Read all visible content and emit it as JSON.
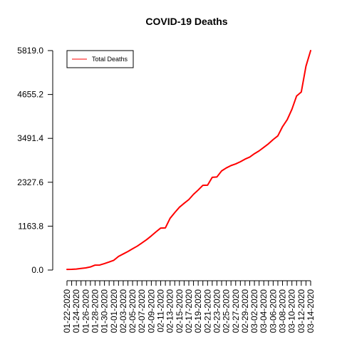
{
  "chart_data": {
    "type": "line",
    "title": "COVID-19 Deaths",
    "xlabel": "",
    "ylabel": "",
    "x": [
      "01-22-2020",
      "01-23-2020",
      "01-24-2020",
      "01-25-2020",
      "01-26-2020",
      "01-27-2020",
      "01-28-2020",
      "01-29-2020",
      "01-30-2020",
      "01-31-2020",
      "02-01-2020",
      "02-02-2020",
      "02-03-2020",
      "02-04-2020",
      "02-05-2020",
      "02-06-2020",
      "02-07-2020",
      "02-08-2020",
      "02-09-2020",
      "02-10-2020",
      "02-11-2020",
      "02-12-2020",
      "02-13-2020",
      "02-14-2020",
      "02-15-2020",
      "02-16-2020",
      "02-17-2020",
      "02-18-2020",
      "02-19-2020",
      "02-20-2020",
      "02-21-2020",
      "02-22-2020",
      "02-23-2020",
      "02-24-2020",
      "02-25-2020",
      "02-26-2020",
      "02-27-2020",
      "02-28-2020",
      "02-29-2020",
      "03-01-2020",
      "03-02-2020",
      "03-03-2020",
      "03-04-2020",
      "03-05-2020",
      "03-06-2020",
      "03-07-2020",
      "03-08-2020",
      "03-09-2020",
      "03-10-2020",
      "03-11-2020",
      "03-12-2020",
      "03-13-2020",
      "03-14-2020"
    ],
    "x_tick_labels": [
      "01-22-2020",
      "01-24-2020",
      "01-26-2020",
      "01-28-2020",
      "01-30-2020",
      "02-01-2020",
      "02-03-2020",
      "02-05-2020",
      "02-07-2020",
      "02-09-2020",
      "02-11-2020",
      "02-13-2020",
      "02-15-2020",
      "02-17-2020",
      "02-19-2020",
      "02-21-2020",
      "02-23-2020",
      "02-25-2020",
      "02-27-2020",
      "02-29-2020",
      "03-02-2020",
      "03-04-2020",
      "03-06-2020",
      "03-08-2020",
      "03-10-2020",
      "03-12-2020",
      "03-14-2020"
    ],
    "series": [
      {
        "name": "Total Deaths",
        "color": "#ff0000",
        "values": [
          17,
          18,
          26,
          42,
          56,
          82,
          131,
          133,
          171,
          213,
          259,
          362,
          426,
          492,
          564,
          634,
          719,
          806,
          906,
          1013,
          1113,
          1118,
          1371,
          1523,
          1666,
          1770,
          1868,
          2007,
          2122,
          2247,
          2251,
          2458,
          2469,
          2629,
          2708,
          2770,
          2814,
          2872,
          2941,
          2996,
          3085,
          3160,
          3254,
          3348,
          3460,
          3558,
          3802,
          3988,
          4262,
          4615,
          4720,
          5404,
          5819
        ]
      }
    ],
    "yticks": [
      "0.0",
      "1163.8",
      "2327.6",
      "3491.4",
      "4655.2",
      "5819.0"
    ],
    "ylim": [
      0,
      5819
    ],
    "legend_position": "top-left",
    "grid": false
  }
}
